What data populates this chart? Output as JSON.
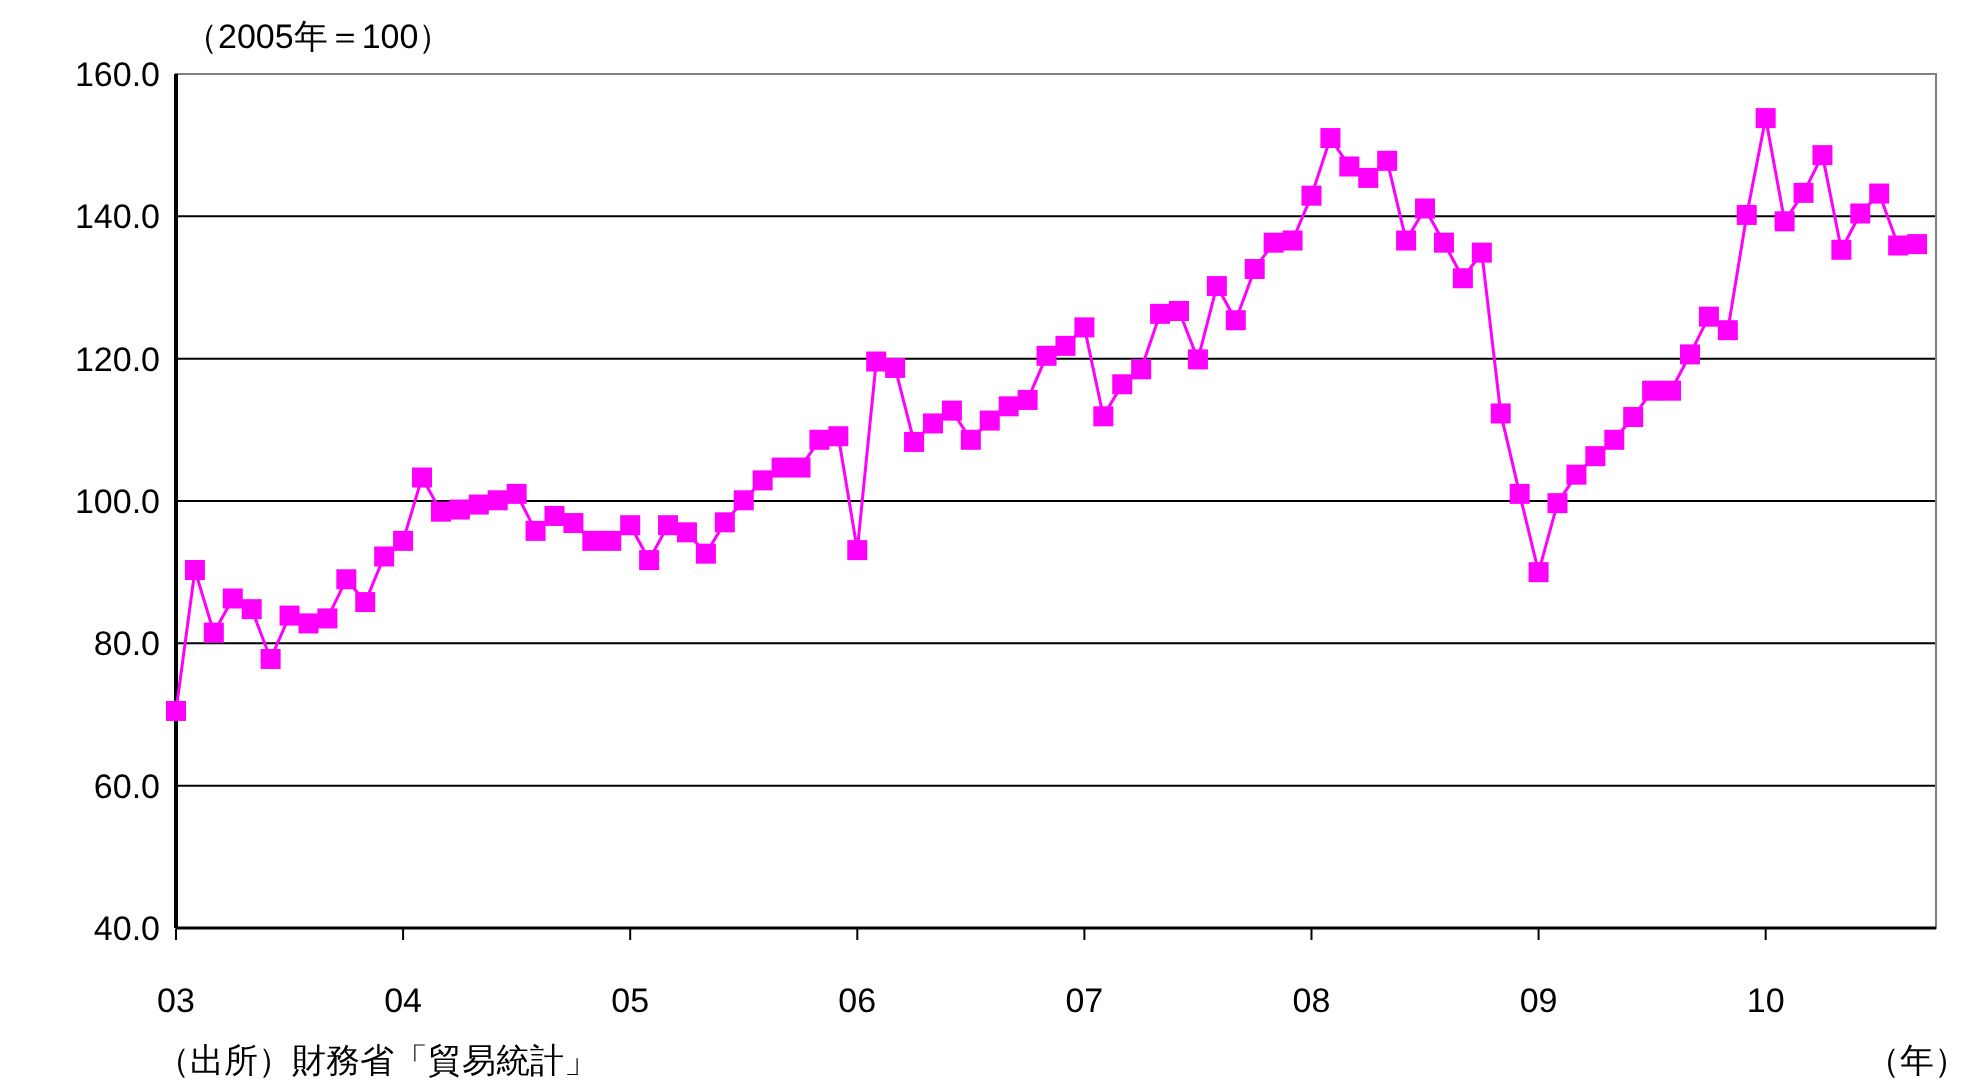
{
  "chart_data": {
    "type": "line",
    "ylabel": "（2005年＝100）",
    "xlabel": "（年）",
    "annotations": [
      "（出所）財務省「貿易統計」"
    ],
    "x": [
      "2003-01",
      "2003-02",
      "2003-03",
      "2003-04",
      "2003-05",
      "2003-06",
      "2003-07",
      "2003-08",
      "2003-09",
      "2003-10",
      "2003-11",
      "2003-12",
      "2004-01",
      "2004-02",
      "2004-03",
      "2004-04",
      "2004-05",
      "2004-06",
      "2004-07",
      "2004-08",
      "2004-09",
      "2004-10",
      "2004-11",
      "2004-12",
      "2005-01",
      "2005-02",
      "2005-03",
      "2005-04",
      "2005-05",
      "2005-06",
      "2005-07",
      "2005-08",
      "2005-09",
      "2005-10",
      "2005-11",
      "2005-12",
      "2006-01",
      "2006-02",
      "2006-03",
      "2006-04",
      "2006-05",
      "2006-06",
      "2006-07",
      "2006-08",
      "2006-09",
      "2006-10",
      "2006-11",
      "2006-12",
      "2007-01",
      "2007-02",
      "2007-03",
      "2007-04",
      "2007-05",
      "2007-06",
      "2007-07",
      "2007-08",
      "2007-09",
      "2007-10",
      "2007-11",
      "2007-12",
      "2008-01",
      "2008-02",
      "2008-03",
      "2008-04",
      "2008-05",
      "2008-06",
      "2008-07",
      "2008-08",
      "2008-09",
      "2008-10",
      "2008-11",
      "2008-12",
      "2009-01",
      "2009-02",
      "2009-03",
      "2009-04",
      "2009-05",
      "2009-06",
      "2009-07",
      "2009-08",
      "2009-09",
      "2009-10",
      "2009-11",
      "2009-12",
      "2010-01",
      "2010-02",
      "2010-03",
      "2010-04",
      "2010-05",
      "2010-06",
      "2010-07",
      "2010-08",
      "2010-09"
    ],
    "series": [
      {
        "color": "#ff00ff",
        "values": [
          70.5,
          90.3,
          81.5,
          86.3,
          84.8,
          77.8,
          83.9,
          82.8,
          83.5,
          89.0,
          85.8,
          92.2,
          94.4,
          103.3,
          98.5,
          98.8,
          99.5,
          100.1,
          101.0,
          95.8,
          97.9,
          96.9,
          94.4,
          94.4,
          96.6,
          91.7,
          96.6,
          95.6,
          92.6,
          97.0,
          100.1,
          102.9,
          104.7,
          104.7,
          108.6,
          109.1,
          93.1,
          119.6,
          118.7,
          108.3,
          110.9,
          112.7,
          108.6,
          111.3,
          113.3,
          114.2,
          120.4,
          121.8,
          124.4,
          111.9,
          116.4,
          118.5,
          126.3,
          126.7,
          119.9,
          130.2,
          125.4,
          132.6,
          136.3,
          136.6,
          142.9,
          151.0,
          147.0,
          145.4,
          147.8,
          136.6,
          141.1,
          136.3,
          131.3,
          134.9,
          112.3,
          101.0,
          90.0,
          99.7,
          103.7,
          106.3,
          108.6,
          111.8,
          115.5,
          115.5,
          120.6,
          125.9,
          124.0,
          140.2,
          153.8,
          139.3,
          143.3,
          148.6,
          135.3,
          140.4,
          143.2,
          135.9,
          136.1
        ]
      }
    ],
    "xlim": [
      "2003-01",
      "2010-10"
    ],
    "xticks": [
      {
        "value": "2003-01",
        "label": "03"
      },
      {
        "value": "2004-01",
        "label": "04"
      },
      {
        "value": "2005-01",
        "label": "05"
      },
      {
        "value": "2006-01",
        "label": "06"
      },
      {
        "value": "2007-01",
        "label": "07"
      },
      {
        "value": "2008-01",
        "label": "08"
      },
      {
        "value": "2009-01",
        "label": "09"
      },
      {
        "value": "2010-01",
        "label": "10"
      }
    ],
    "ylim": [
      40,
      160
    ],
    "yticks": [
      {
        "value": 40,
        "label": "40.0"
      },
      {
        "value": 60,
        "label": "60.0"
      },
      {
        "value": 80,
        "label": "80.0"
      },
      {
        "value": 100,
        "label": "100.0"
      },
      {
        "value": 120,
        "label": "120.0"
      },
      {
        "value": 140,
        "label": "140.0"
      },
      {
        "value": 160,
        "label": "160.0"
      }
    ],
    "grid": "y",
    "marker": "square",
    "line_style": "solid"
  }
}
